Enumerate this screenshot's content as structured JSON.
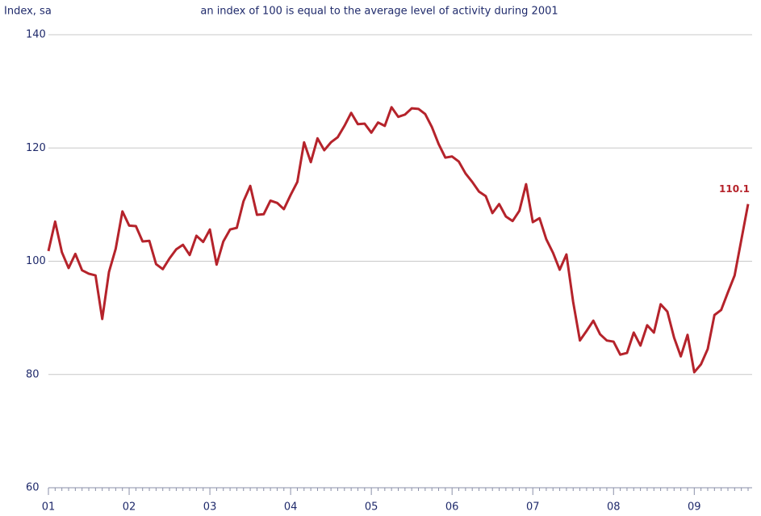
{
  "chart_data": {
    "type": "line",
    "y_label": "Index, sa",
    "subtitle": "an index of 100 is equal to the average level of activity during 2001",
    "categories": [
      "01",
      null,
      null,
      null,
      null,
      null,
      null,
      null,
      null,
      null,
      null,
      null,
      "02",
      null,
      null,
      null,
      null,
      null,
      null,
      null,
      null,
      null,
      null,
      null,
      "03",
      null,
      null,
      null,
      null,
      null,
      null,
      null,
      null,
      null,
      null,
      null,
      "04",
      null,
      null,
      null,
      null,
      null,
      null,
      null,
      null,
      null,
      null,
      null,
      "05",
      null,
      null,
      null,
      null,
      null,
      null,
      null,
      null,
      null,
      null,
      null,
      "06",
      null,
      null,
      null,
      null,
      null,
      null,
      null,
      null,
      null,
      null,
      null,
      "07",
      null,
      null,
      null,
      null,
      null,
      null,
      null,
      null,
      null,
      null,
      null,
      "08",
      null,
      null,
      null,
      null,
      null,
      null,
      null,
      null,
      null,
      null,
      null,
      "09",
      null,
      null,
      null,
      null,
      null,
      null,
      null,
      null
    ],
    "series": [
      {
        "color": "#b5232b",
        "values": [
          101.8,
          107.0,
          101.6,
          98.8,
          101.3,
          98.4,
          97.8,
          97.5,
          89.8,
          98.1,
          102.2,
          108.8,
          106.3,
          106.2,
          103.5,
          103.6,
          99.5,
          98.6,
          100.5,
          102.1,
          102.9,
          101.1,
          104.5,
          103.4,
          105.6,
          99.4,
          103.5,
          105.6,
          105.9,
          110.6,
          113.3,
          108.2,
          108.3,
          110.7,
          110.3,
          109.2,
          111.7,
          114.0,
          121.0,
          117.5,
          121.7,
          119.6,
          121.0,
          121.9,
          123.9,
          126.2,
          124.2,
          124.3,
          122.7,
          124.5,
          123.9,
          127.2,
          125.5,
          125.9,
          127.0,
          126.9,
          126.0,
          123.7,
          120.7,
          118.3,
          118.5,
          117.6,
          115.5,
          114.0,
          112.3,
          111.5,
          108.5,
          110.1,
          107.9,
          107.1,
          108.9,
          113.6,
          106.9,
          107.6,
          103.9,
          101.5,
          98.5,
          101.2,
          92.8,
          86.0,
          87.7,
          89.5,
          87.1,
          86.0,
          85.8,
          83.5,
          83.8,
          87.4,
          85.1,
          88.7,
          87.4,
          92.4,
          91.1,
          86.5,
          83.2,
          87.0,
          80.4,
          81.8,
          84.5,
          90.5,
          91.4,
          94.5,
          97.5,
          103.8,
          110.1
        ]
      }
    ],
    "annotation": "110.1",
    "ylim": [
      60,
      140
    ],
    "yticks": [
      60,
      80,
      100,
      120,
      140
    ],
    "grid": true
  }
}
